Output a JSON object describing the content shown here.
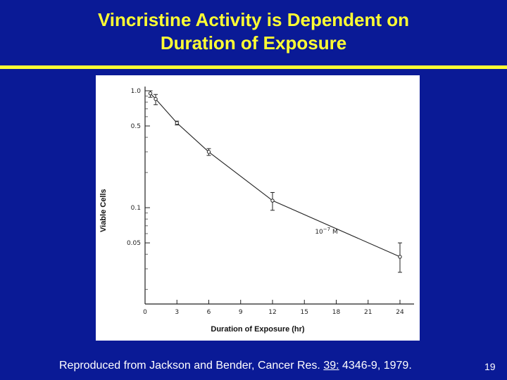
{
  "slide": {
    "title_line1": "Vincristine Activity is Dependent on",
    "title_line2": "Duration of Exposure",
    "footer": {
      "cite_before": "Reproduced from Jackson and Bender, Cancer Res. ",
      "cite_volume": "39:",
      "cite_after": " 4346-9, 1979."
    },
    "page_number": "19",
    "colors": {
      "background": "#0a1a96",
      "title": "#ffff33",
      "text": "#ffffff"
    }
  },
  "chart_data": {
    "type": "line",
    "xlabel": "Duration of Exposure (hr)",
    "ylabel": "Viable Cells",
    "y_scale": "log",
    "xlim": [
      0,
      25
    ],
    "ylim": [
      0.015,
      1.1
    ],
    "x_ticks": [
      0,
      3,
      6,
      9,
      12,
      15,
      18,
      21,
      24
    ],
    "y_ticks": [
      {
        "value": 1.0,
        "label": "1.0"
      },
      {
        "value": 0.5,
        "label": "0.5"
      },
      {
        "value": 0.1,
        "label": "0.1"
      },
      {
        "value": 0.05,
        "label": "0.05"
      }
    ],
    "y_minor_ticks": [
      0.9,
      0.8,
      0.7,
      0.6,
      0.4,
      0.3,
      0.2,
      0.09,
      0.08,
      0.07,
      0.06,
      0.04,
      0.03,
      0.02
    ],
    "series": [
      {
        "name": "",
        "x": [
          0.5,
          1,
          3,
          6,
          12,
          24
        ],
        "y": [
          0.95,
          0.85,
          0.53,
          0.3,
          0.115,
          0.038
        ],
        "y_err_low": [
          0.88,
          0.76,
          0.51,
          0.28,
          0.095,
          0.028
        ],
        "y_err_high": [
          1.0,
          0.93,
          0.55,
          0.32,
          0.135,
          0.05
        ]
      }
    ],
    "annotations": [
      {
        "text": "10",
        "superscript": "−7",
        "suffix": " M",
        "x": 16,
        "y": 0.06
      }
    ],
    "grid": false,
    "legend": "none"
  }
}
